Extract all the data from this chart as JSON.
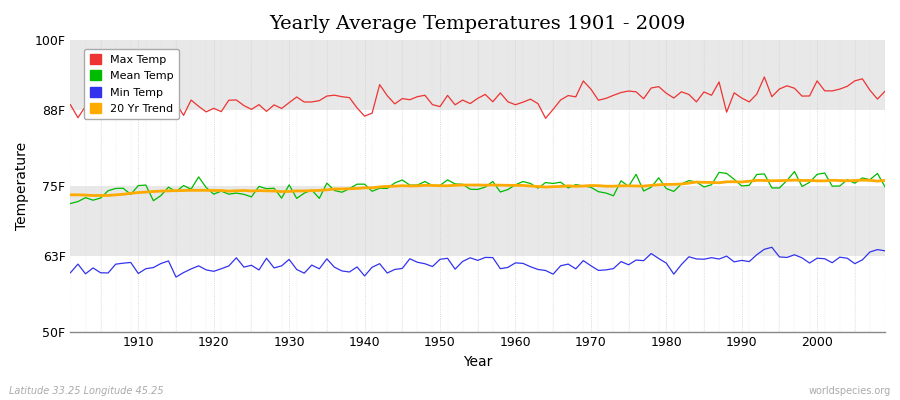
{
  "title": "Yearly Average Temperatures 1901 - 2009",
  "xlabel": "Year",
  "ylabel": "Temperature",
  "lat_lon_label": "Latitude 33.25 Longitude 45.25",
  "watermark": "worldspecies.org",
  "bg_color": "#ffffff",
  "plot_bg_color": "#ffffff",
  "band_colors": [
    "#ffffff",
    "#e8e8e8"
  ],
  "yticks": [
    50,
    63,
    75,
    88,
    100
  ],
  "ytick_labels": [
    "50F",
    "63F",
    "75F",
    "88F",
    "100F"
  ],
  "ylim": [
    50,
    100
  ],
  "xlim": [
    1901,
    2009
  ],
  "line_colors": {
    "max": "#ee3333",
    "mean": "#00bb00",
    "min": "#3333ee",
    "trend": "#ffaa00"
  },
  "legend_labels": [
    "Max Temp",
    "Mean Temp",
    "Min Temp",
    "20 Yr Trend"
  ],
  "legend_colors": [
    "#ee3333",
    "#00bb00",
    "#3333ee",
    "#ffaa00"
  ],
  "title_fontsize": 14,
  "axis_label_fontsize": 10,
  "tick_fontsize": 9,
  "legend_fontsize": 8,
  "lat_lon_fontsize": 7,
  "watermark_fontsize": 7
}
